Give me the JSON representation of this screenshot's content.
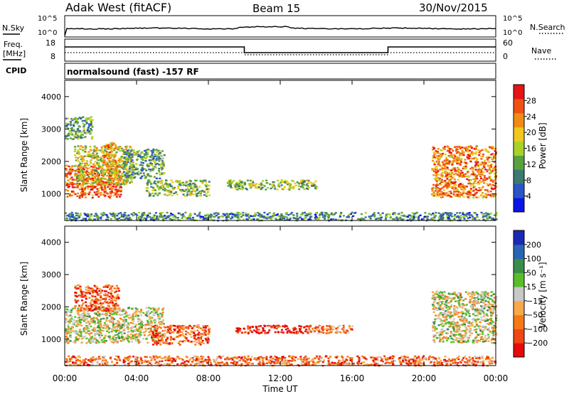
{
  "header": {
    "radar": "Adak West (fitACF)",
    "beam": "Beam 15",
    "date": "30/Nov/2015"
  },
  "strip_nsky": {
    "label": "N.Sky",
    "right_label": "N.Search",
    "left_ticks": [
      "10^5",
      "10^0"
    ],
    "right_ticks": [
      "10^5",
      "10^0"
    ]
  },
  "strip_freq": {
    "label_line1": "Freq.",
    "label_line2": "[MHz]",
    "right_label": "Nave",
    "left_ticks": [
      "18",
      "8"
    ],
    "right_ticks": [
      "60",
      "0"
    ]
  },
  "cpid": {
    "label": "CPID",
    "text": "normalsound (fast) -157 RF"
  },
  "colors": {
    "power": [
      "#0a14e6",
      "#2a55c8",
      "#3a7a70",
      "#5aa040",
      "#a8d22a",
      "#f0c81e",
      "#f08c14",
      "#f05014",
      "#e61414"
    ],
    "velocity": [
      "#e60a0a",
      "#f04614",
      "#f57a14",
      "#f8a84a",
      "#c8c8c8",
      "#5abe2a",
      "#3a8c4a",
      "#2a64b4",
      "#1a2ab4"
    ]
  },
  "chart_data": [
    {
      "type": "heatmap",
      "parameter": "power",
      "ylabel": "Slant Range [km]",
      "yticks": [
        "4000",
        "3000",
        "2000",
        "1000"
      ],
      "ylim": [
        180,
        4500
      ],
      "xlim": [
        0,
        24
      ],
      "colorbar": {
        "label": "Power [dB]",
        "ticks": [
          "28",
          "24",
          "20",
          "16",
          "12",
          "8",
          "4"
        ]
      },
      "regions": [
        {
          "x": [
            0.0,
            3.1
          ],
          "y": [
            900,
            1900
          ],
          "level": 0.85
        },
        {
          "x": [
            0.5,
            3.8
          ],
          "y": [
            1300,
            2500
          ],
          "level": 0.55
        },
        {
          "x": [
            2.0,
            2.8
          ],
          "y": [
            1900,
            2600
          ],
          "level": 0.7
        },
        {
          "x": [
            3.2,
            5.5
          ],
          "y": [
            1500,
            2400
          ],
          "level": 0.35
        },
        {
          "x": [
            4.5,
            8.0
          ],
          "y": [
            950,
            1450
          ],
          "level": 0.45
        },
        {
          "x": [
            0.0,
            1.5
          ],
          "y": [
            2700,
            3400
          ],
          "level": 0.35
        },
        {
          "x": [
            9.0,
            14.0
          ],
          "y": [
            1150,
            1450
          ],
          "level": 0.45
        },
        {
          "x": [
            20.4,
            24.0
          ],
          "y": [
            900,
            2500
          ],
          "level": 0.75
        },
        {
          "x": [
            0.0,
            24.0
          ],
          "y": [
            200,
            450
          ],
          "level": 0.3
        }
      ]
    },
    {
      "type": "heatmap",
      "parameter": "velocity",
      "ylabel": "Slant Range [km]",
      "xlabel": "Time UT",
      "xticks": [
        "00:00",
        "04:00",
        "08:00",
        "12:00",
        "16:00",
        "20:00",
        "00:00"
      ],
      "yticks": [
        "4000",
        "3000",
        "2000",
        "1000"
      ],
      "ylim": [
        180,
        4500
      ],
      "xlim": [
        0,
        24
      ],
      "colorbar": {
        "label": "Velocity [m s⁻¹]",
        "ticks": [
          "200",
          "100",
          "50",
          "15",
          "−15",
          "−50",
          "−100",
          "−200"
        ]
      },
      "regions": [
        {
          "x": [
            0.0,
            5.5
          ],
          "y": [
            900,
            2000
          ],
          "level": 0.5
        },
        {
          "x": [
            0.5,
            3.0
          ],
          "y": [
            1900,
            2700
          ],
          "level": 0.2
        },
        {
          "x": [
            4.8,
            8.0
          ],
          "y": [
            850,
            1450
          ],
          "level": 0.2
        },
        {
          "x": [
            9.5,
            13.5
          ],
          "y": [
            1200,
            1450
          ],
          "level": 0.05
        },
        {
          "x": [
            13.5,
            16.0
          ],
          "y": [
            1200,
            1450
          ],
          "level": 0.3
        },
        {
          "x": [
            20.4,
            24.0
          ],
          "y": [
            900,
            2500
          ],
          "level": 0.5
        },
        {
          "x": [
            0.0,
            24.0
          ],
          "y": [
            200,
            500
          ],
          "level": 0.25
        }
      ]
    }
  ]
}
